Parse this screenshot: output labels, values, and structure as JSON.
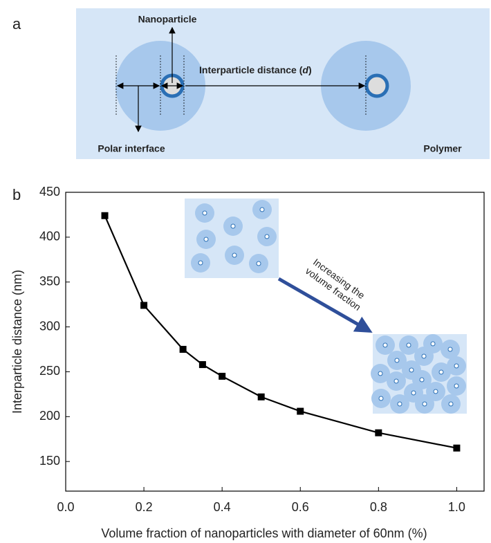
{
  "panel_a": {
    "label": "a",
    "nanoparticle": "Nanoparticle",
    "distance_label": [
      "Interparticle distance (",
      "d",
      ")"
    ],
    "polar_interface": "Polar interface",
    "polymer": "Polymer"
  },
  "panel_b": {
    "label": "b",
    "annotation": [
      "Increasing the",
      "volume fraction"
    ]
  },
  "chart_data": {
    "type": "line",
    "x_label": "Volume fraction of nanoparticles with diameter of 60nm (%)",
    "y_label": "Interparticle distance (nm)",
    "x": [
      0.1,
      0.2,
      0.3,
      0.35,
      0.4,
      0.5,
      0.6,
      0.8,
      1.0
    ],
    "values": [
      424,
      324,
      275,
      258,
      245,
      222,
      206,
      182,
      165
    ],
    "color": "#000000",
    "marker": "square",
    "xlim": [
      0,
      1.07
    ],
    "ylim": [
      117,
      450
    ],
    "xticks": [
      {
        "value": 0,
        "label": "0.0"
      },
      0.2,
      0.4,
      0.6,
      0.8,
      {
        "value": 1,
        "label": "1.0"
      }
    ],
    "yticks": [
      150,
      200,
      250,
      300,
      350,
      400,
      450
    ]
  }
}
